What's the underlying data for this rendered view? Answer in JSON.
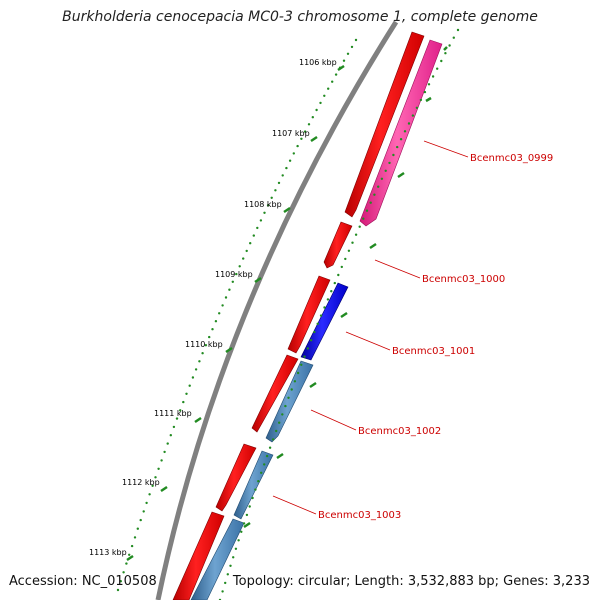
{
  "title": "Burkholderia cenocepacia MC0-3 chromosome 1, complete genome",
  "footer": {
    "accession": "Accession: NC_010508",
    "summary": "Topology: circular; Length: 3,532,883 bp; Genes: 3,233"
  },
  "ruler": {
    "labels": [
      "1106 kbp",
      "1107 kbp",
      "1108 kbp",
      "1109 kbp",
      "1110 kbp",
      "1111 kbp",
      "1112 kbp",
      "1113 kbp"
    ],
    "color": "#228b22"
  },
  "backbone_color": "#808080",
  "gene_labels": [
    "Bcenmc03_0999",
    "Bcenmc03_1000",
    "Bcenmc03_1001",
    "Bcenmc03_1002",
    "Bcenmc03_1003"
  ],
  "colors": {
    "cds_track": "#ff0000",
    "pink": "#ff3399",
    "blue": "#0000ee",
    "steelblue": "#4682b4",
    "label": "#cc0000"
  }
}
